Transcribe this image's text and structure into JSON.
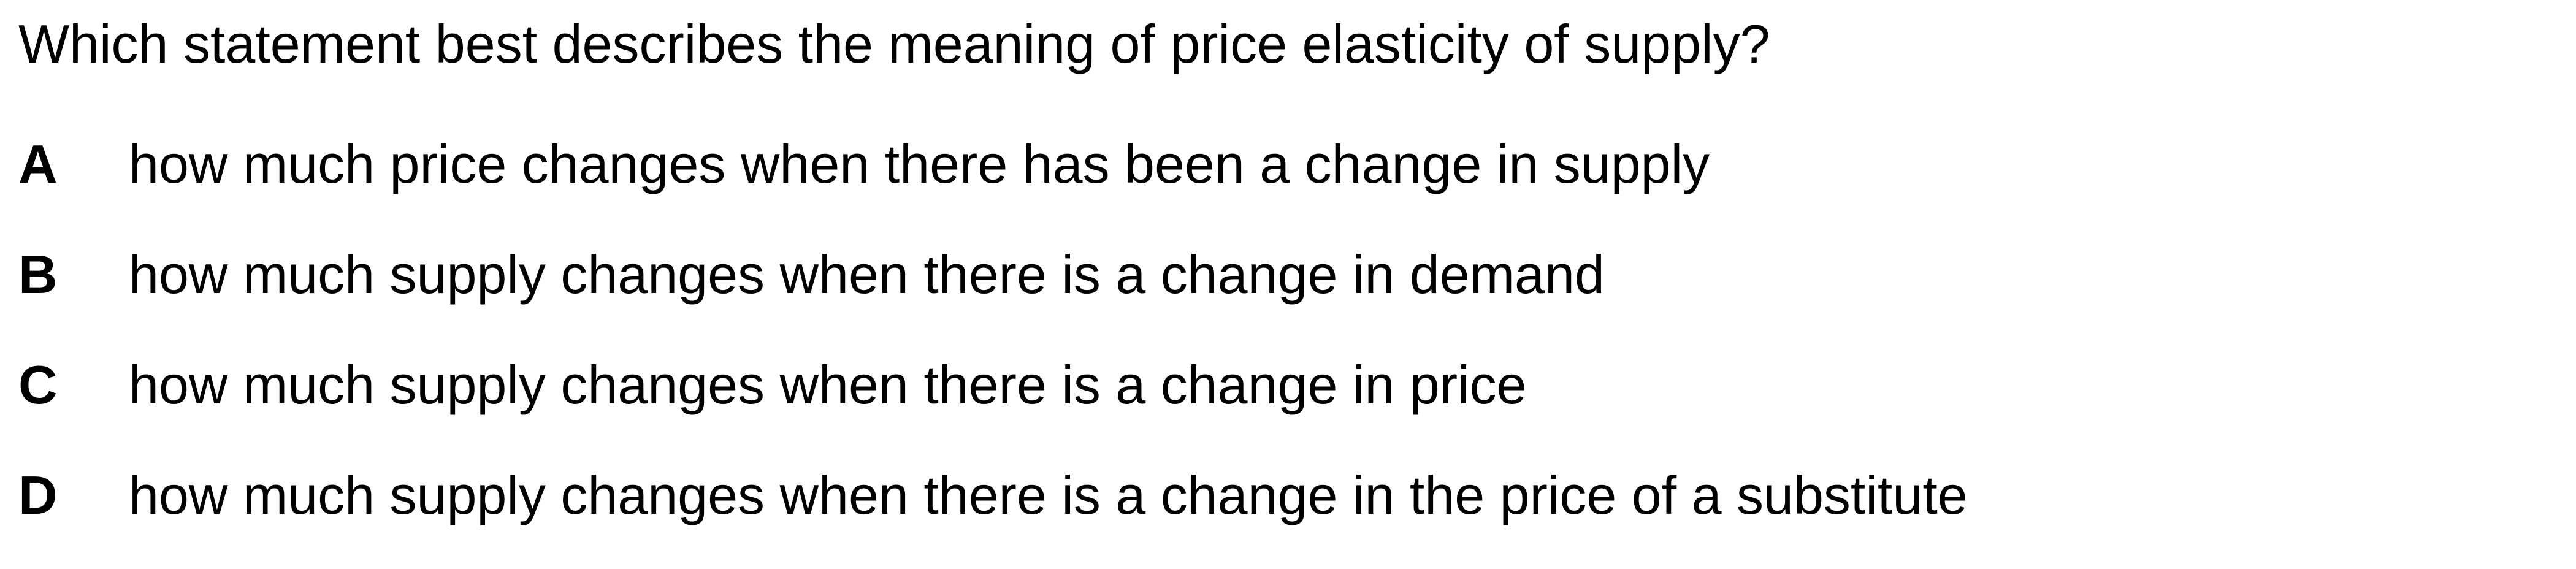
{
  "question": {
    "text": "Which statement best describes the meaning of price elasticity of supply?"
  },
  "options": [
    {
      "letter": "A",
      "text": "how much price changes when there has been a change in supply"
    },
    {
      "letter": "B",
      "text": "how much supply changes when there is a change in demand"
    },
    {
      "letter": "C",
      "text": "how much supply changes when there is a change in price"
    },
    {
      "letter": "D",
      "text": "how much supply changes when there is a change in the price of a substitute"
    }
  ]
}
